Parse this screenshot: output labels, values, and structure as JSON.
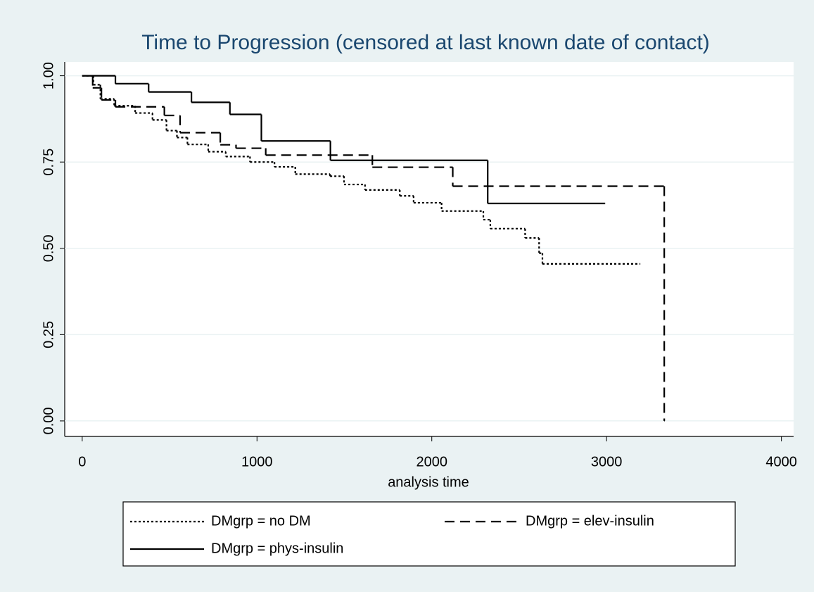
{
  "chart_data": {
    "type": "step",
    "title": "Time to Progression (censored at last known date of contact)",
    "x_label": "analysis time",
    "xlim": [
      -100,
      4070
    ],
    "ylim": [
      -0.045,
      1.04
    ],
    "xticks": [
      0,
      1000,
      2000,
      3000,
      4000
    ],
    "yticks": [
      {
        "value": 0,
        "label": "0.00"
      },
      {
        "value": 0.25,
        "label": "0.25"
      },
      {
        "value": 0.5,
        "label": "0.50"
      },
      {
        "value": 0.75,
        "label": "0.75"
      },
      {
        "value": 1,
        "label": "1.00"
      }
    ],
    "grid": true,
    "legend": "bottom",
    "series": [
      {
        "name": "DMgrp = no DM",
        "color": "#000000",
        "style": "dotted",
        "x": [
          0,
          64,
          104,
          183,
          303,
          402,
          482,
          542,
          602,
          721,
          821,
          960,
          1100,
          1219,
          1418,
          1498,
          1618,
          1817,
          1896,
          2056,
          2295,
          2335,
          2534,
          2614,
          2633,
          3191
        ],
        "values": [
          1.0,
          0.974,
          0.933,
          0.913,
          0.892,
          0.872,
          0.841,
          0.821,
          0.801,
          0.78,
          0.766,
          0.75,
          0.736,
          0.715,
          0.709,
          0.685,
          0.669,
          0.652,
          0.632,
          0.608,
          0.583,
          0.557,
          0.53,
          0.486,
          0.455,
          0.455
        ]
      },
      {
        "name": "DMgrp = elev-insulin",
        "color": "#000000",
        "style": "dashed",
        "x": [
          0,
          60,
          110,
          190,
          470,
          560,
          790,
          880,
          1050,
          1660,
          2120,
          3330
        ],
        "values": [
          1.0,
          0.965,
          0.93,
          0.91,
          0.885,
          0.835,
          0.8,
          0.79,
          0.77,
          0.735,
          0.68,
          0.0
        ]
      },
      {
        "name": "DMgrp = phys-insulin",
        "color": "#000000",
        "style": "solid",
        "x": [
          0,
          190,
          380,
          625,
          845,
          1025,
          1420,
          2320,
          2990
        ],
        "values": [
          1.0,
          0.977,
          0.953,
          0.923,
          0.888,
          0.811,
          0.755,
          0.63,
          0.63
        ]
      }
    ]
  }
}
